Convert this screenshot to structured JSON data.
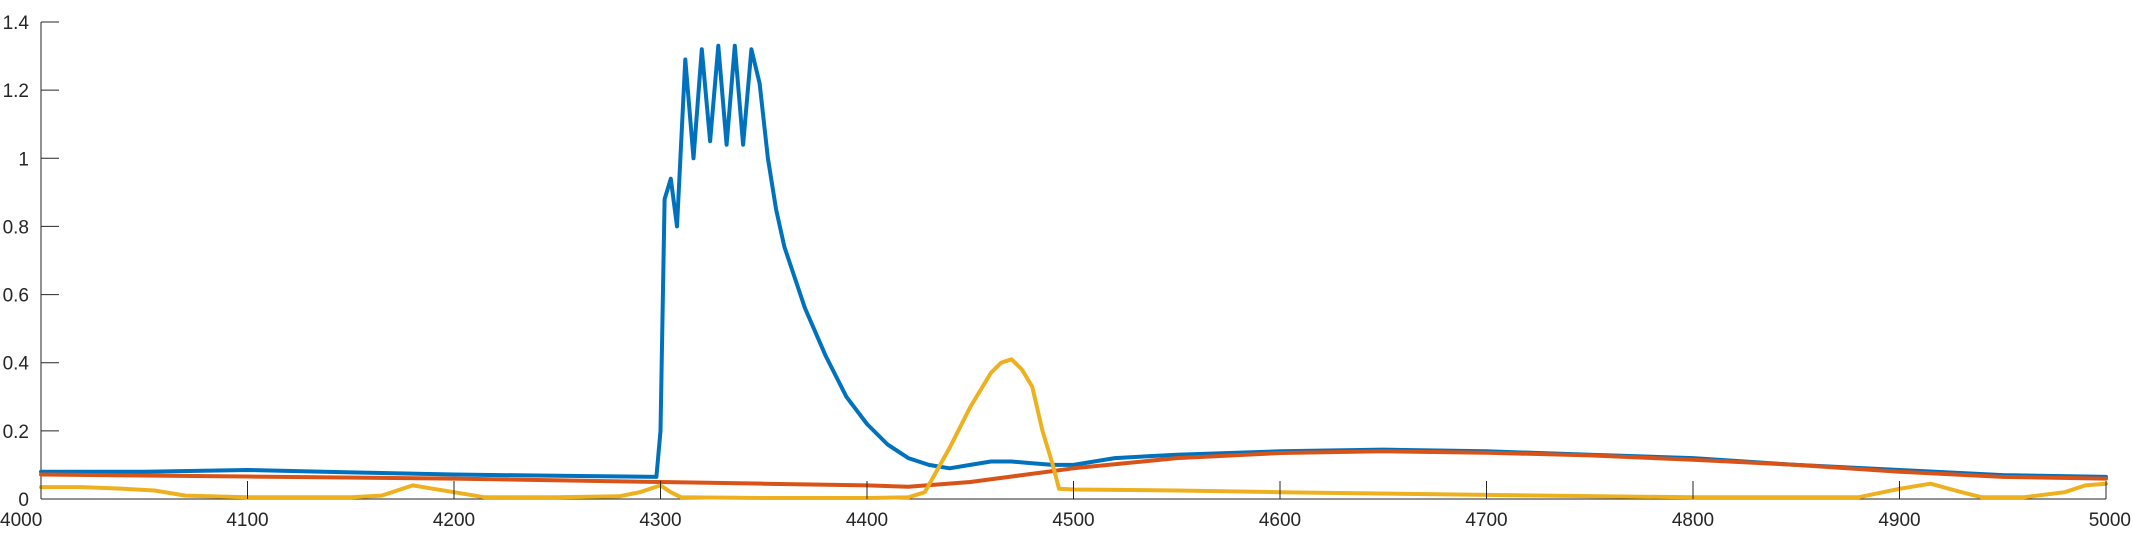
{
  "chart_data": {
    "type": "line",
    "title": "",
    "xlabel": "",
    "ylabel": "",
    "xlim": [
      4000,
      5000
    ],
    "ylim": [
      0,
      1.4
    ],
    "xticks": [
      4000,
      4100,
      4200,
      4300,
      4400,
      4500,
      4600,
      4700,
      4800,
      4900,
      5000
    ],
    "xtick_labels": [
      "4000",
      "4100",
      "4200",
      "4300",
      "4400",
      "4500",
      "4600",
      "4700",
      "4800",
      "4900",
      "5000"
    ],
    "yticks": [
      0,
      0.2,
      0.4,
      0.6,
      0.8,
      1,
      1.2,
      1.4
    ],
    "ytick_labels": [
      "0",
      "0.2",
      "0.4",
      "0.6",
      "0.8",
      "1",
      "1.2",
      "1.4"
    ],
    "grid": false,
    "legend": "none",
    "series": [
      {
        "color": "#0072BD",
        "x": [
          4000,
          4050,
          4100,
          4150,
          4200,
          4250,
          4298,
          4300,
          4302,
          4305,
          4308,
          4312,
          4316,
          4320,
          4324,
          4328,
          4332,
          4336,
          4340,
          4344,
          4348,
          4352,
          4356,
          4360,
          4370,
          4380,
          4390,
          4400,
          4410,
          4420,
          4430,
          4440,
          4450,
          4460,
          4470,
          4480,
          4490,
          4500,
          4510,
          4520,
          4550,
          4600,
          4650,
          4700,
          4750,
          4800,
          4850,
          4900,
          4950,
          5000
        ],
        "y": [
          0.08,
          0.08,
          0.085,
          0.078,
          0.072,
          0.068,
          0.065,
          0.2,
          0.88,
          0.94,
          0.8,
          1.29,
          1.0,
          1.32,
          1.05,
          1.33,
          1.04,
          1.33,
          1.04,
          1.32,
          1.22,
          1.0,
          0.85,
          0.74,
          0.56,
          0.42,
          0.3,
          0.22,
          0.16,
          0.12,
          0.1,
          0.09,
          0.1,
          0.11,
          0.11,
          0.105,
          0.1,
          0.1,
          0.11,
          0.12,
          0.13,
          0.14,
          0.145,
          0.14,
          0.13,
          0.12,
          0.1,
          0.085,
          0.07,
          0.065
        ]
      },
      {
        "color": "#D95319",
        "x": [
          4000,
          4100,
          4200,
          4300,
          4350,
          4400,
          4420,
          4450,
          4500,
          4550,
          4600,
          4650,
          4700,
          4750,
          4800,
          4850,
          4900,
          4950,
          5000
        ],
        "y": [
          0.072,
          0.066,
          0.06,
          0.05,
          0.045,
          0.04,
          0.036,
          0.05,
          0.09,
          0.12,
          0.135,
          0.14,
          0.136,
          0.128,
          0.115,
          0.1,
          0.08,
          0.065,
          0.06
        ]
      },
      {
        "color": "#EDB120",
        "x": [
          4000,
          4020,
          4040,
          4055,
          4070,
          4100,
          4150,
          4165,
          4180,
          4190,
          4200,
          4215,
          4250,
          4280,
          4290,
          4300,
          4305,
          4310,
          4350,
          4400,
          4420,
          4428,
          4440,
          4450,
          4460,
          4465,
          4470,
          4475,
          4480,
          4485,
          4490,
          4493,
          4500,
          4550,
          4600,
          4700,
          4800,
          4880,
          4900,
          4915,
          4930,
          4940,
          4960,
          4980,
          4990,
          5000
        ],
        "y": [
          0.035,
          0.035,
          0.03,
          0.025,
          0.01,
          0.005,
          0.005,
          0.01,
          0.04,
          0.03,
          0.02,
          0.005,
          0.005,
          0.008,
          0.02,
          0.04,
          0.02,
          0.005,
          0.003,
          0.003,
          0.005,
          0.02,
          0.15,
          0.27,
          0.37,
          0.4,
          0.41,
          0.38,
          0.33,
          0.2,
          0.1,
          0.03,
          0.028,
          0.025,
          0.02,
          0.012,
          0.005,
          0.005,
          0.03,
          0.045,
          0.02,
          0.005,
          0.005,
          0.02,
          0.04,
          0.045
        ]
      }
    ]
  }
}
